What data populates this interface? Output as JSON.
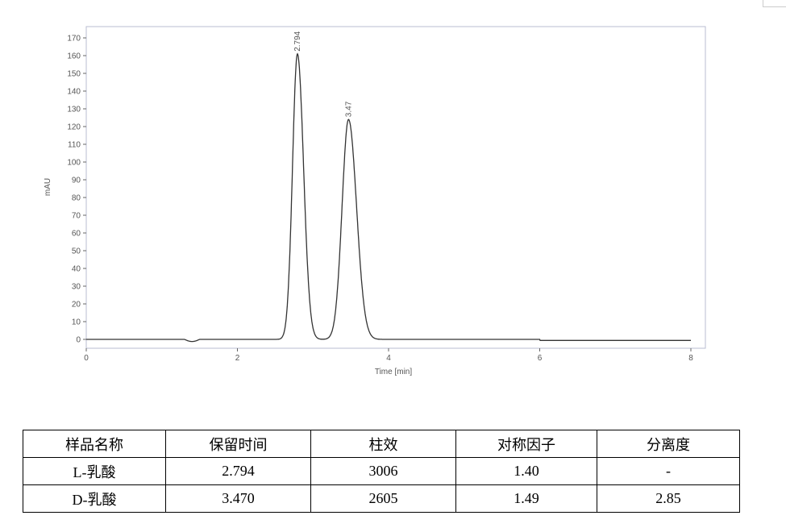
{
  "chart_data": {
    "type": "line",
    "xlabel": "Time [min]",
    "ylabel": "mAU",
    "xlim": [
      0,
      8
    ],
    "ylim": [
      -5,
      175
    ],
    "xticks": [
      0,
      2,
      4,
      6,
      8
    ],
    "yticks": [
      0,
      10,
      20,
      30,
      40,
      50,
      60,
      70,
      80,
      90,
      100,
      110,
      120,
      130,
      140,
      150,
      160,
      170
    ],
    "grid": false,
    "peaks": [
      {
        "retention_time": 2.794,
        "height": 161,
        "label": "2.794"
      },
      {
        "retention_time": 3.47,
        "height": 124,
        "label": "3.47"
      }
    ]
  },
  "table": {
    "headers": [
      "样品名称",
      "保留时间",
      "柱效",
      "对称因子",
      "分离度"
    ],
    "rows": [
      [
        "L-乳酸",
        "2.794",
        "3006",
        "1.40",
        "-"
      ],
      [
        "D-乳酸",
        "3.470",
        "2605",
        "1.49",
        "2.85"
      ]
    ]
  }
}
